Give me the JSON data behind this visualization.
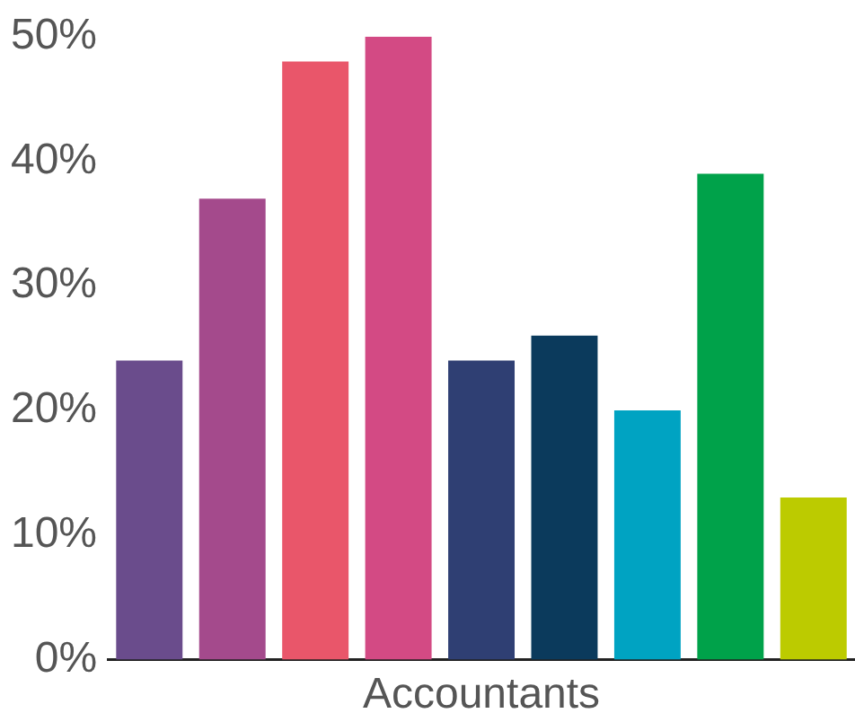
{
  "chart_data": {
    "type": "bar",
    "xlabel": "Accountants",
    "categories": [
      null,
      null,
      null,
      null,
      null,
      null,
      null,
      null,
      null
    ],
    "values": [
      24,
      37,
      48,
      50,
      24,
      26,
      20,
      39,
      13
    ],
    "colors": [
      "#6a4c8c",
      "#a44a8c",
      "#e9566a",
      "#d34a84",
      "#2f3f73",
      "#0b3a5c",
      "#00a3c2",
      "#00a24a",
      "#bccb00"
    ],
    "ylim": [
      0,
      50
    ],
    "yticks": [
      {
        "value": 0,
        "label": "0%"
      },
      {
        "value": 10,
        "label": "10%"
      },
      {
        "value": 20,
        "label": "20%"
      },
      {
        "value": 30,
        "label": "30%"
      },
      {
        "value": 40,
        "label": "40%"
      },
      {
        "value": 50,
        "label": "50%"
      }
    ],
    "grid": false,
    "legend": false
  }
}
